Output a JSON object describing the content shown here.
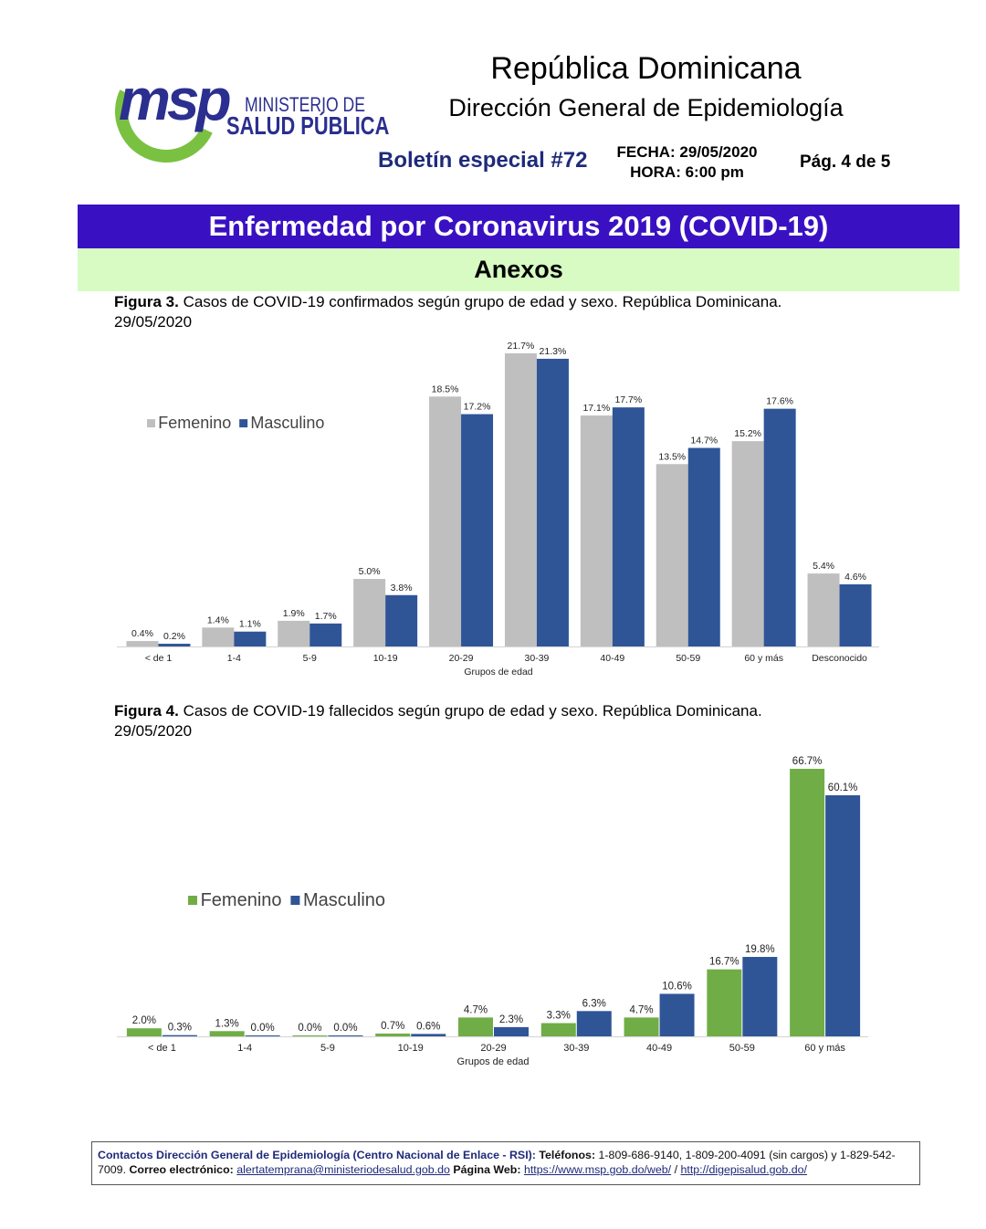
{
  "header": {
    "logo_text": "msp",
    "logo_line1": "MINISTERIO DE",
    "logo_line2": "SALUD PÚBLICA",
    "title": "República Dominicana",
    "subtitle": "Dirección General de Epidemiología",
    "boletin": "Boletín especial #72",
    "fecha": "FECHA: 29/05/2020",
    "hora": "HORA: 6:00 pm",
    "pagina": "Pág. 4 de 5"
  },
  "banner": "Enfermedad por Coronavirus 2019 (COVID-19)",
  "section": "Anexos",
  "figures": [
    {
      "label": "Figura 3.",
      "caption": "Casos de COVID-19 confirmados según grupo de edad y sexo. República Dominicana.",
      "date": "29/05/2020"
    },
    {
      "label": "Figura 4.",
      "caption": "Casos de COVID-19 fallecidos según grupo de edad y sexo. República Dominicana.",
      "date": "29/05/2020"
    }
  ],
  "chart_data": [
    {
      "type": "bar",
      "xlabel": "Grupos de edad",
      "ylabel": "",
      "ylim": [
        0,
        21.7
      ],
      "grid": false,
      "legend": "top-left",
      "categories": [
        "< de 1",
        "1-4",
        "5-9",
        "10-19",
        "20-29",
        "30-39",
        "40-49",
        "50-59",
        "60 y más",
        "Desconocido"
      ],
      "series": [
        {
          "name": "Femenino",
          "color": "#bfbfbf",
          "values": [
            0.4,
            1.4,
            1.9,
            5.0,
            18.5,
            21.7,
            17.1,
            13.5,
            15.2,
            5.4
          ],
          "labels": [
            "0.4%",
            "1.4%",
            "1.9%",
            "5.0%",
            "18.5%",
            "21.7%",
            "17.1%",
            "13.5%",
            "15.2%",
            "5.4%"
          ]
        },
        {
          "name": "Masculino",
          "color": "#2f5597",
          "values": [
            0.2,
            1.1,
            1.7,
            3.8,
            17.2,
            21.3,
            17.7,
            14.7,
            17.6,
            4.6
          ],
          "labels": [
            "0.2%",
            "1.1%",
            "1.7%",
            "3.8%",
            "17.2%",
            "21.3%",
            "17.7%",
            "14.7%",
            "17.6%",
            "4.6%"
          ]
        }
      ]
    },
    {
      "type": "bar",
      "xlabel": "Grupos de edad",
      "ylabel": "",
      "ylim": [
        0,
        66.7
      ],
      "grid": false,
      "legend": "middle-left",
      "categories": [
        "< de 1",
        "1-4",
        "5-9",
        "10-19",
        "20-29",
        "30-39",
        "40-49",
        "50-59",
        "60 y más"
      ],
      "series": [
        {
          "name": "Femenino",
          "color": "#70ad47",
          "values": [
            2.0,
            1.3,
            0.0,
            0.7,
            4.7,
            3.3,
            4.7,
            16.7,
            66.7
          ],
          "labels": [
            "2.0%",
            "1.3%",
            "0.0%",
            "0.7%",
            "4.7%",
            "3.3%",
            "4.7%",
            "16.7%",
            "66.7%"
          ]
        },
        {
          "name": "Masculino",
          "color": "#2f5597",
          "values": [
            0.3,
            0.0,
            0.0,
            0.6,
            2.3,
            6.3,
            10.6,
            19.8,
            60.1
          ],
          "labels": [
            "0.3%",
            "0.0%",
            "0.0%",
            "0.6%",
            "2.3%",
            "6.3%",
            "10.6%",
            "19.8%",
            "60.1%"
          ]
        }
      ]
    }
  ],
  "footer": {
    "contact_label": "Contactos Dirección General de Epidemiología (Centro Nacional de Enlace - RSI):",
    "phones_label": "Teléfonos:",
    "phones": "1-809-686-9140, 1-809-200-4091 (sin cargos) y 1-829-542-7009.",
    "email_label": "Correo electrónico:",
    "email": "alertatemprana@ministeriodesalud.gob.do",
    "web_label": "Página Web:",
    "web1": "https://www.msp.gob.do/web/",
    "separator": "/",
    "web2": "http://digepisalud.gob.do/"
  }
}
